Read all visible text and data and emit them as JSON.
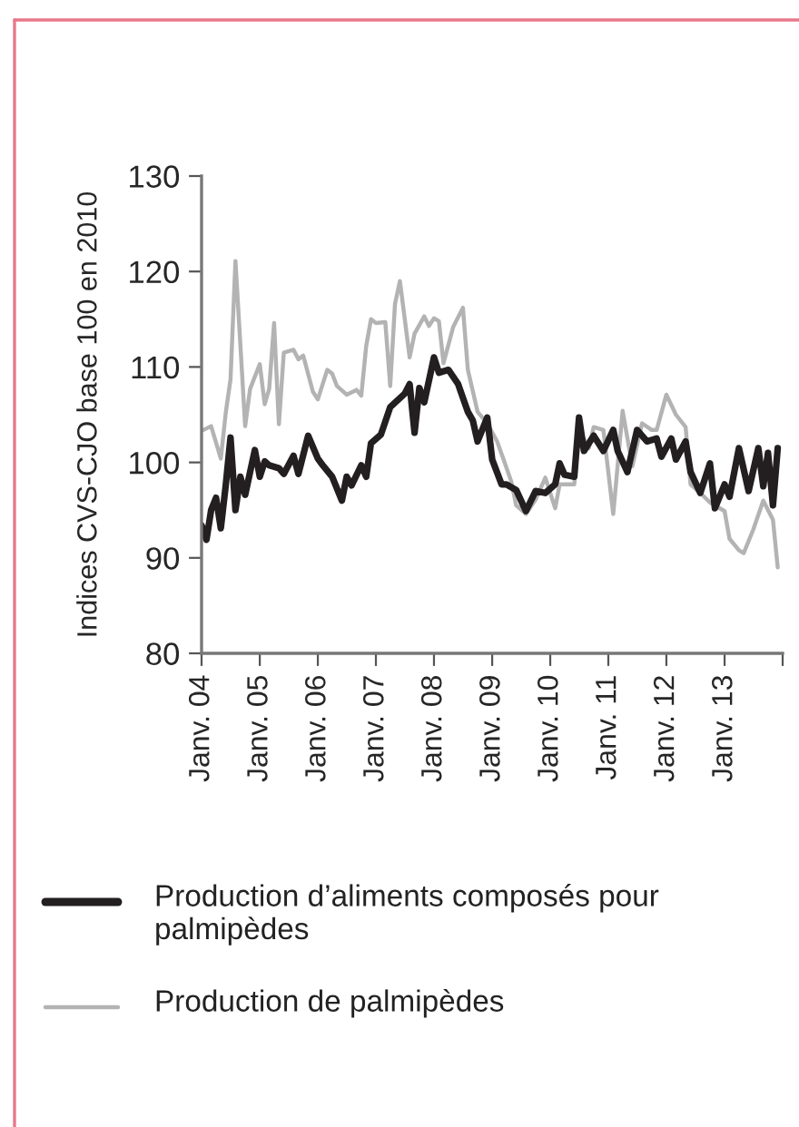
{
  "chart_data": {
    "type": "line",
    "ylabel": "Indices CVS-CJO base 100 en 2010",
    "xlim": [
      "2004-01",
      "2014-01"
    ],
    "ylim": [
      80,
      130
    ],
    "yticks": [
      80,
      90,
      100,
      110,
      120,
      130
    ],
    "xticks": [
      {
        "value": "2004-01",
        "label": "Janv. 04"
      },
      {
        "value": "2005-01",
        "label": "Janv. 05"
      },
      {
        "value": "2006-01",
        "label": "Janv. 06"
      },
      {
        "value": "2007-01",
        "label": "Janv. 07"
      },
      {
        "value": "2008-01",
        "label": "Janv. 08"
      },
      {
        "value": "2009-01",
        "label": "Janv. 09"
      },
      {
        "value": "2010-01",
        "label": "Janv. 10"
      },
      {
        "value": "2011-01",
        "label": "Janv. 11"
      },
      {
        "value": "2012-01",
        "label": "Janv. 12"
      },
      {
        "value": "2013-01",
        "label": "Janv. 13"
      },
      {
        "value": "2014-01",
        "label": null
      }
    ],
    "grid": false,
    "legend": "bottom",
    "marker": "none",
    "line_style": "solid",
    "series": [
      {
        "name": "Production de palmipèdes",
        "color": "#b3b3b3",
        "x": [
          "2004-01",
          "2004-03",
          "2004-05",
          "2004-06",
          "2004-07",
          "2004-08",
          "2004-10",
          "2004-11",
          "2005-01",
          "2005-02",
          "2005-03",
          "2005-04",
          "2005-05",
          "2005-06",
          "2005-08",
          "2005-09",
          "2005-10",
          "2005-12",
          "2006-01",
          "2006-03",
          "2006-04",
          "2006-05",
          "2006-07",
          "2006-09",
          "2006-10",
          "2006-11",
          "2006-12",
          "2007-01",
          "2007-03",
          "2007-04",
          "2007-05",
          "2007-06",
          "2007-08",
          "2007-09",
          "2007-11",
          "2007-12",
          "2008-01",
          "2008-02",
          "2008-03",
          "2008-05",
          "2008-07",
          "2008-08",
          "2008-10",
          "2008-12",
          "2009-02",
          "2009-03",
          "2009-05",
          "2009-06",
          "2009-08",
          "2009-10",
          "2009-12",
          "2010-02",
          "2010-03",
          "2010-06",
          "2010-07",
          "2010-09",
          "2010-10",
          "2010-12",
          "2011-02",
          "2011-04",
          "2011-06",
          "2011-08",
          "2011-10",
          "2011-11",
          "2012-01",
          "2012-03",
          "2012-05",
          "2012-06",
          "2012-08",
          "2012-10",
          "2013-01",
          "2013-02",
          "2013-04",
          "2013-05",
          "2013-07",
          "2013-09",
          "2013-11",
          "2013-12"
        ],
        "values": [
          103.3,
          103.8,
          100.4,
          105.2,
          108.7,
          121.1,
          103.8,
          107.7,
          110.3,
          106.1,
          107.7,
          114.6,
          104,
          111.5,
          111.8,
          110.8,
          111.2,
          107.4,
          106.6,
          109.7,
          109.3,
          108,
          107.1,
          107.6,
          107,
          112.2,
          115,
          114.6,
          114.7,
          108,
          116.6,
          119,
          111,
          113.5,
          115.3,
          114.3,
          115.1,
          114.8,
          110.4,
          114.2,
          116.2,
          109.7,
          105.3,
          104.1,
          102.2,
          100.9,
          98,
          95.5,
          94.6,
          96.1,
          98.4,
          95.2,
          97.7,
          97.7,
          103.4,
          101.5,
          103.7,
          103.4,
          94.6,
          105.4,
          99.6,
          104.1,
          103.4,
          103.4,
          107.1,
          105,
          103.7,
          97.7,
          96.8,
          95.8,
          94.9,
          92,
          90.8,
          90.5,
          93,
          96,
          94,
          89
        ]
      },
      {
        "name": "Production d’aliments composés pour palmipèdes",
        "color": "#231f20",
        "x": [
          "2004-01",
          "2004-02",
          "2004-03",
          "2004-04",
          "2004-05",
          "2004-06",
          "2004-07",
          "2004-08",
          "2004-09",
          "2004-10",
          "2004-12",
          "2005-01",
          "2005-02",
          "2005-03",
          "2005-05",
          "2005-06",
          "2005-08",
          "2005-09",
          "2005-11",
          "2006-01",
          "2006-02",
          "2006-04",
          "2006-06",
          "2006-07",
          "2006-08",
          "2006-10",
          "2006-11",
          "2006-12",
          "2007-02",
          "2007-04",
          "2007-07",
          "2007-08",
          "2007-09",
          "2007-10",
          "2007-11",
          "2008-01",
          "2008-02",
          "2008-04",
          "2008-06",
          "2008-08",
          "2008-09",
          "2008-10",
          "2008-12",
          "2009-01",
          "2009-03",
          "2009-04",
          "2009-06",
          "2009-08",
          "2009-10",
          "2009-12",
          "2010-02",
          "2010-03",
          "2010-04",
          "2010-06",
          "2010-07",
          "2010-08",
          "2010-10",
          "2010-12",
          "2011-02",
          "2011-03",
          "2011-05",
          "2011-07",
          "2011-09",
          "2011-11",
          "2011-12",
          "2012-02",
          "2012-03",
          "2012-05",
          "2012-06",
          "2012-08",
          "2012-10",
          "2012-11",
          "2013-01",
          "2013-02",
          "2013-04",
          "2013-06",
          "2013-08",
          "2013-09",
          "2013-10",
          "2013-11",
          "2013-12"
        ],
        "values": [
          93.4,
          91.9,
          95,
          96.3,
          93.1,
          97.6,
          102.6,
          95,
          98.5,
          96.6,
          101.3,
          98.5,
          100.1,
          99.7,
          99.4,
          98.8,
          100.7,
          98.8,
          102.8,
          100.4,
          99.7,
          98.5,
          96,
          98.5,
          97.6,
          99.7,
          98.5,
          102,
          102.9,
          105.8,
          107.2,
          108.2,
          103.1,
          107.8,
          106.3,
          111,
          109.4,
          109.7,
          108.2,
          105.3,
          104.4,
          102.2,
          104.7,
          100.3,
          97.7,
          97.7,
          97.1,
          94.9,
          97,
          96.8,
          97.7,
          99.9,
          98.7,
          98.5,
          104.7,
          101.2,
          102.8,
          101.2,
          103.4,
          101.2,
          99,
          103.4,
          102.2,
          102.5,
          100.6,
          102.5,
          100.3,
          102.2,
          99,
          96.8,
          99.9,
          95.2,
          97.7,
          96.4,
          101.5,
          97,
          101.5,
          97.5,
          101,
          95.5,
          101.5
        ]
      }
    ]
  }
}
